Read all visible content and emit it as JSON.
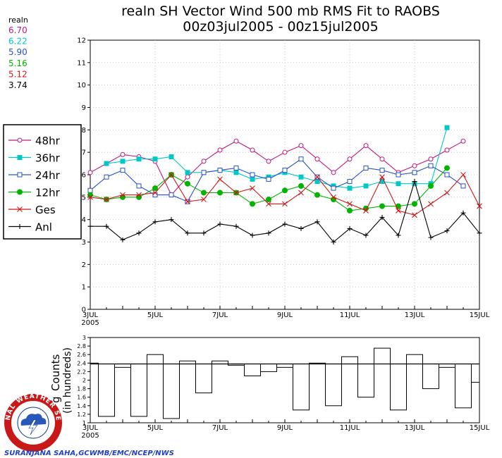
{
  "chart_data": [
    {
      "type": "line",
      "title": "realn SH Vector Wind 500 mb RMS Fit to RAOBS",
      "subtitle": "00z03jul2005 - 00z15jul2005",
      "ylim": [
        0,
        12
      ],
      "yticks": [
        "0",
        "1",
        "2",
        "3",
        "4",
        "5",
        "6",
        "7",
        "8",
        "9",
        "10",
        "11",
        "12"
      ],
      "xlim": [
        0,
        24
      ],
      "xticks": [
        {
          "x": 0,
          "label": "3JUL",
          "sub": "2005"
        },
        {
          "x": 4,
          "label": "5JUL",
          "sub": ""
        },
        {
          "x": 8,
          "label": "7JUL",
          "sub": ""
        },
        {
          "x": 12,
          "label": "9JUL",
          "sub": ""
        },
        {
          "x": 16,
          "label": "11JUL",
          "sub": ""
        },
        {
          "x": 20,
          "label": "13JUL",
          "sub": ""
        },
        {
          "x": 24,
          "label": "15JUL",
          "sub": ""
        }
      ],
      "averages": {
        "title": "realn",
        "items": [
          {
            "value": "6.70",
            "color": "#c0187c"
          },
          {
            "value": "6.22",
            "color": "#00c8c8"
          },
          {
            "value": "5.90",
            "color": "#2850c8"
          },
          {
            "value": "5.16",
            "color": "#00b400"
          },
          {
            "value": "5.12",
            "color": "#d01818"
          },
          {
            "value": "3.74",
            "color": "#000000"
          }
        ]
      },
      "series": [
        {
          "name": "48hr",
          "color": "#c0187c",
          "marker": "circle-open",
          "values": [
            6.1,
            6.5,
            6.9,
            6.8,
            6.6,
            5.1,
            5.9,
            6.6,
            7.1,
            7.5,
            7.1,
            6.6,
            7.0,
            7.3,
            6.7,
            6.1,
            6.7,
            7.3,
            6.7,
            6.1,
            6.4,
            6.7,
            7.1,
            7.5,
            null
          ]
        },
        {
          "name": "36hr",
          "color": "#00c8c8",
          "marker": "square-filled",
          "values": [
            null,
            6.5,
            6.6,
            6.7,
            6.7,
            6.8,
            6.1,
            6.1,
            6.2,
            6.1,
            5.8,
            5.9,
            6.1,
            5.9,
            5.7,
            5.5,
            5.4,
            5.5,
            5.7,
            5.6,
            5.6,
            5.6,
            8.1,
            null,
            null
          ]
        },
        {
          "name": "24hr",
          "color": "#2850c8",
          "marker": "square-open",
          "values": [
            5.3,
            5.9,
            6.2,
            5.5,
            5.1,
            5.1,
            4.8,
            6.1,
            6.2,
            6.3,
            6.0,
            5.8,
            6.2,
            6.7,
            5.9,
            5.4,
            5.7,
            6.3,
            6.2,
            6.0,
            6.1,
            6.4,
            6.0,
            5.5,
            null
          ]
        },
        {
          "name": "12hr",
          "color": "#00b400",
          "marker": "circle-filled",
          "values": [
            5.1,
            4.9,
            5.0,
            5.0,
            5.4,
            6.0,
            5.6,
            5.2,
            5.2,
            5.2,
            4.7,
            4.9,
            5.3,
            5.5,
            5.1,
            4.9,
            4.4,
            4.5,
            4.6,
            4.6,
            4.7,
            5.5,
            6.3,
            null,
            null
          ]
        },
        {
          "name": "Ges",
          "color": "#d01818",
          "marker": "x",
          "values": [
            5.0,
            4.9,
            5.1,
            5.1,
            5.2,
            6.0,
            4.8,
            4.9,
            5.8,
            5.2,
            5.4,
            4.7,
            4.7,
            5.2,
            5.9,
            5.0,
            4.7,
            4.4,
            5.9,
            4.4,
            4.2,
            4.7,
            5.2,
            6.0,
            4.6
          ]
        },
        {
          "name": "Anl",
          "color": "#000000",
          "marker": "plus",
          "values": [
            3.7,
            3.7,
            3.1,
            3.4,
            3.9,
            4.0,
            3.4,
            3.4,
            3.8,
            3.7,
            3.3,
            3.4,
            3.8,
            3.6,
            3.9,
            3.0,
            3.6,
            3.3,
            4.1,
            3.3,
            5.7,
            3.2,
            3.5,
            4.3,
            3.4
          ]
        }
      ]
    },
    {
      "type": "bar",
      "ylabel_line1": "Counts",
      "ylabel_prefix": "g",
      "ylabel_line2": "(in hundreds)",
      "ylim": [
        1,
        3
      ],
      "yticks": [
        "1",
        "1.2",
        "1.4",
        "1.6",
        "1.8",
        "2",
        "2.2",
        "2.4",
        "2.6",
        "2.8",
        "3"
      ],
      "reference": 2.38,
      "values": [
        2.4,
        1.15,
        2.3,
        1.15,
        2.6,
        1.1,
        2.45,
        1.7,
        2.45,
        2.35,
        2.1,
        2.2,
        2.3,
        1.3,
        2.4,
        1.4,
        2.55,
        1.6,
        2.75,
        1.3,
        2.6,
        1.8,
        2.3,
        1.35,
        1.95
      ],
      "xticks": [
        {
          "x": 0,
          "label": "3JUL",
          "sub": "2005"
        },
        {
          "x": 4,
          "label": "5JUL",
          "sub": ""
        },
        {
          "x": 8,
          "label": "7JUL",
          "sub": ""
        },
        {
          "x": 12,
          "label": "9JUL",
          "sub": ""
        },
        {
          "x": 16,
          "label": "11JUL",
          "sub": ""
        },
        {
          "x": 20,
          "label": "13JUL",
          "sub": ""
        },
        {
          "x": 24,
          "label": "15JUL",
          "sub": ""
        }
      ]
    }
  ],
  "logo": {
    "text": "NATIONAL WEATHER SERVICE",
    "credit": "SURANJANA SAHA,GCWMB/EMC/NCEP/NWS"
  }
}
